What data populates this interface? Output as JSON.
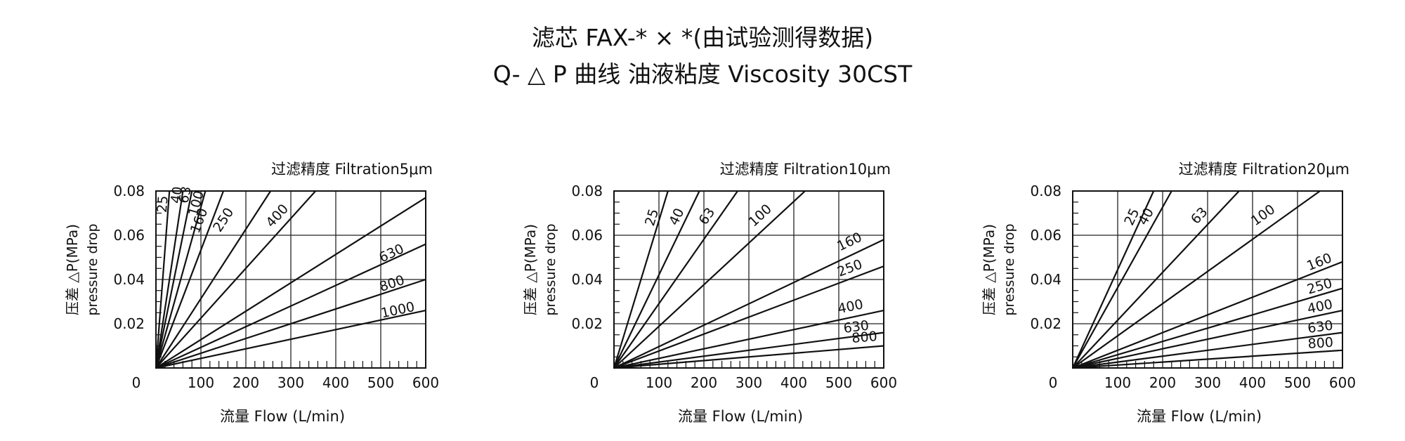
{
  "title": {
    "line1": "滤芯 FAX-* × *(由试验测得数据)",
    "line2": "Q- △ P 曲线 油液粘度 Viscosity 30CST"
  },
  "chart_data": [
    {
      "type": "line",
      "subtitle": "过滤精度 Filtration5μm",
      "xlabel": "流量 Flow (L/min)",
      "ylabel": [
        "压差 △P(MPa)",
        "pressure drop"
      ],
      "xlim": [
        0,
        600
      ],
      "ylim": [
        0,
        0.08
      ],
      "x_ticks": [
        "100",
        "200",
        "300",
        "400",
        "500",
        "600"
      ],
      "y_ticks": [
        "0.02",
        "0.04",
        "0.06",
        "0.08"
      ],
      "origin_label": "0",
      "grid": true,
      "series": [
        {
          "name": "25",
          "x": [
            0,
            30
          ],
          "y": [
            0,
            0.08
          ]
        },
        {
          "name": "40",
          "x": [
            0,
            60
          ],
          "y": [
            0,
            0.08
          ]
        },
        {
          "name": "63",
          "x": [
            0,
            80
          ],
          "y": [
            0,
            0.08
          ]
        },
        {
          "name": "100",
          "x": [
            0,
            110
          ],
          "y": [
            0,
            0.08
          ]
        },
        {
          "name": "160",
          "x": [
            0,
            150
          ],
          "y": [
            0,
            0.08
          ]
        },
        {
          "name": "250",
          "x": [
            0,
            255
          ],
          "y": [
            0,
            0.08
          ]
        },
        {
          "name": "400",
          "x": [
            0,
            355
          ],
          "y": [
            0,
            0.08
          ]
        },
        {
          "name": "",
          "x": [
            0,
            600
          ],
          "y": [
            0,
            0.077
          ]
        },
        {
          "name": "630",
          "x": [
            0,
            600
          ],
          "y": [
            0,
            0.056
          ]
        },
        {
          "name": "800",
          "x": [
            0,
            600
          ],
          "y": [
            0,
            0.04
          ]
        },
        {
          "name": "1000",
          "x": [
            0,
            600
          ],
          "y": [
            0,
            0.026
          ]
        }
      ]
    },
    {
      "type": "line",
      "subtitle": "过滤精度 Filtration10μm",
      "xlabel": "流量 Flow (L/min)",
      "ylabel": [
        "压差 △P(MPa)",
        "pressure drop"
      ],
      "xlim": [
        0,
        600
      ],
      "ylim": [
        0,
        0.08
      ],
      "x_ticks": [
        "100",
        "200",
        "300",
        "400",
        "500",
        "600"
      ],
      "y_ticks": [
        "0.02",
        "0.04",
        "0.06",
        "0.08"
      ],
      "origin_label": "0",
      "grid": true,
      "series": [
        {
          "name": "25",
          "x": [
            0,
            120
          ],
          "y": [
            0,
            0.08
          ]
        },
        {
          "name": "40",
          "x": [
            0,
            190
          ],
          "y": [
            0,
            0.08
          ]
        },
        {
          "name": "63",
          "x": [
            0,
            275
          ],
          "y": [
            0,
            0.08
          ]
        },
        {
          "name": "100",
          "x": [
            0,
            425
          ],
          "y": [
            0,
            0.08
          ]
        },
        {
          "name": "160",
          "x": [
            0,
            600
          ],
          "y": [
            0,
            0.058
          ]
        },
        {
          "name": "250",
          "x": [
            0,
            600
          ],
          "y": [
            0,
            0.046
          ]
        },
        {
          "name": "400",
          "x": [
            0,
            600
          ],
          "y": [
            0,
            0.026
          ]
        },
        {
          "name": "630",
          "x": [
            0,
            600
          ],
          "y": [
            0,
            0.016
          ]
        },
        {
          "name": "800",
          "x": [
            0,
            600
          ],
          "y": [
            0,
            0.01
          ]
        }
      ]
    },
    {
      "type": "line",
      "subtitle": "过滤精度 Filtration20μm",
      "xlabel": "流量 Flow (L/min)",
      "ylabel": [
        "压差 △P(MPa)",
        "pressure drop"
      ],
      "xlim": [
        0,
        600
      ],
      "ylim": [
        0,
        0.08
      ],
      "x_ticks": [
        "100",
        "200",
        "300",
        "400",
        "500",
        "600"
      ],
      "y_ticks": [
        "0.02",
        "0.04",
        "0.06",
        "0.08"
      ],
      "origin_label": "0",
      "grid": true,
      "series": [
        {
          "name": "25",
          "x": [
            0,
            180
          ],
          "y": [
            0,
            0.08
          ]
        },
        {
          "name": "40",
          "x": [
            0,
            220
          ],
          "y": [
            0,
            0.08
          ]
        },
        {
          "name": "63",
          "x": [
            0,
            370
          ],
          "y": [
            0,
            0.08
          ]
        },
        {
          "name": "100",
          "x": [
            0,
            550
          ],
          "y": [
            0,
            0.08
          ]
        },
        {
          "name": "160",
          "x": [
            0,
            600
          ],
          "y": [
            0,
            0.048
          ]
        },
        {
          "name": "250",
          "x": [
            0,
            600
          ],
          "y": [
            0,
            0.036
          ]
        },
        {
          "name": "400",
          "x": [
            0,
            600
          ],
          "y": [
            0,
            0.026
          ]
        },
        {
          "name": "630",
          "x": [
            0,
            600
          ],
          "y": [
            0,
            0.016
          ]
        },
        {
          "name": "800",
          "x": [
            0,
            600
          ],
          "y": [
            0,
            0.008
          ]
        }
      ]
    }
  ]
}
